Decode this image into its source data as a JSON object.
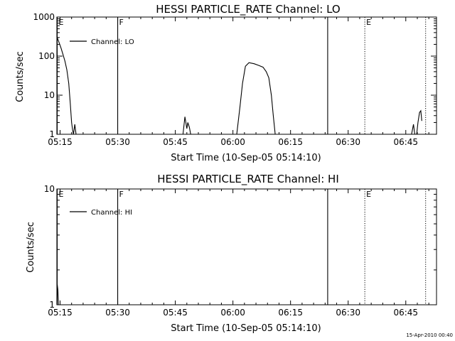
{
  "colors": {
    "background": "#ffffff",
    "foreground": "#000000"
  },
  "footer": {
    "timestamp": "15-Apr-2010 00:40"
  },
  "chart_data": [
    {
      "type": "line",
      "title": "HESSI PARTICLE_RATE Channel: LO",
      "xlabel": "Start Time (10-Sep-05 05:14:10)",
      "ylabel": "Counts/sec",
      "yscale": "log",
      "ylim": [
        1,
        1000
      ],
      "xlim": [
        "05:14:10",
        "06:53:00"
      ],
      "xticks": [
        "05:15",
        "05:30",
        "05:45",
        "06:00",
        "06:15",
        "06:30",
        "06:45"
      ],
      "yticks": [
        "1",
        "10",
        "100",
        "1000"
      ],
      "legend": {
        "label": "Channel: LO",
        "placement": "top-left"
      },
      "markers": [
        {
          "label": "E",
          "time": "05:14:15",
          "style": "solid"
        },
        {
          "label": "F",
          "time": "05:30:00",
          "style": "solid"
        },
        {
          "label": "",
          "time": "06:24:40",
          "style": "solid"
        },
        {
          "label": "E",
          "time": "06:34:20",
          "style": "dotted"
        },
        {
          "label": "",
          "time": "06:50:10",
          "style": "dotted"
        }
      ],
      "series": [
        {
          "segments": [
            [
              [
                "05:14:15",
                300
              ],
              [
                "05:14:45",
                220
              ],
              [
                "05:15:15",
                160
              ],
              [
                "05:15:45",
                110
              ],
              [
                "05:16:15",
                75
              ],
              [
                "05:16:45",
                45
              ],
              [
                "05:17:15",
                20
              ],
              [
                "05:17:40",
                6
              ],
              [
                "05:18:00",
                2
              ],
              [
                "05:18:15",
                1.3
              ],
              [
                "05:18:30",
                1
              ],
              [
                "05:18:50",
                1.8
              ],
              [
                "05:19:10",
                1
              ]
            ],
            [
              [
                "05:47:00",
                1
              ],
              [
                "05:47:30",
                2.8
              ],
              [
                "05:48:00",
                1.4
              ],
              [
                "05:48:15",
                2.0
              ],
              [
                "05:48:40",
                1.5
              ],
              [
                "05:49:00",
                1
              ]
            ],
            [
              [
                "06:01:00",
                1
              ],
              [
                "06:01:50",
                5
              ],
              [
                "06:02:30",
                20
              ],
              [
                "06:03:15",
                55
              ],
              [
                "06:04:10",
                68
              ],
              [
                "06:05:30",
                64
              ],
              [
                "06:06:40",
                58
              ],
              [
                "06:07:50",
                52
              ],
              [
                "06:08:40",
                40
              ],
              [
                "06:09:20",
                28
              ],
              [
                "06:10:00",
                10
              ],
              [
                "06:10:30",
                3
              ],
              [
                "06:11:00",
                1
              ]
            ],
            [
              [
                "06:46:30",
                1
              ],
              [
                "06:47:00",
                1.8
              ],
              [
                "06:47:20",
                1
              ],
              [
                "06:47:50",
                1
              ],
              [
                "06:48:10",
                2
              ],
              [
                "06:48:35",
                3.6
              ],
              [
                "06:48:55",
                4.0
              ],
              [
                "06:49:10",
                2.2
              ]
            ]
          ]
        }
      ]
    },
    {
      "type": "line",
      "title": "HESSI PARTICLE_RATE Channel: HI",
      "xlabel": "Start Time (10-Sep-05 05:14:10)",
      "ylabel": "Counts/sec",
      "yscale": "log",
      "ylim": [
        1,
        10
      ],
      "xlim": [
        "05:14:10",
        "06:53:00"
      ],
      "xticks": [
        "05:15",
        "05:30",
        "05:45",
        "06:00",
        "06:15",
        "06:30",
        "06:45"
      ],
      "yticks": [
        "1",
        "10"
      ],
      "legend": {
        "label": "Channel: HI",
        "placement": "top-left"
      },
      "markers": [
        {
          "label": "E",
          "time": "05:14:15",
          "style": "solid"
        },
        {
          "label": "F",
          "time": "05:30:00",
          "style": "solid"
        },
        {
          "label": "",
          "time": "06:24:40",
          "style": "solid"
        },
        {
          "label": "E",
          "time": "06:34:20",
          "style": "dotted"
        },
        {
          "label": "",
          "time": "06:50:10",
          "style": "dotted"
        }
      ],
      "series": [
        {
          "segments": [
            [
              [
                "05:14:15",
                1.5
              ],
              [
                "05:14:25",
                1.35
              ],
              [
                "05:14:35",
                1.0
              ]
            ]
          ]
        }
      ]
    }
  ]
}
